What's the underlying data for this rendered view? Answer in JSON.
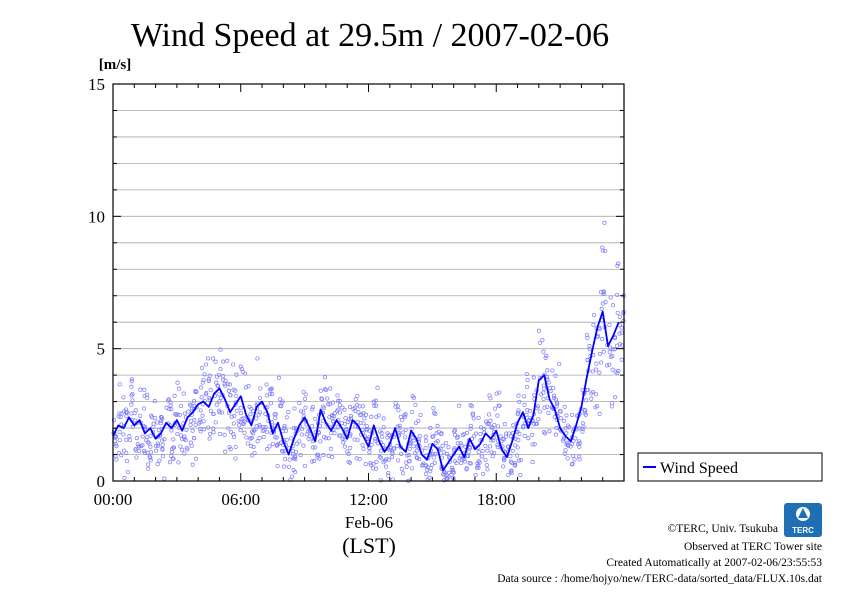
{
  "chart_data": {
    "type": "line",
    "title": "Wind Speed at 29.5m / 2007-02-06",
    "ylabel": "[m/s]",
    "xlabel": "(LST)",
    "date_label": "Feb-06",
    "x_ticks": [
      "00:00",
      "06:00",
      "12:00",
      "18:00"
    ],
    "y_ticks": [
      "0",
      "5",
      "10",
      "15"
    ],
    "ylim": [
      0,
      15
    ],
    "xlim_hours": [
      0,
      24
    ],
    "grid": true,
    "legend_position": "right",
    "series": [
      {
        "name": "Wind Speed",
        "color": "#0000ff",
        "x_hours": [
          0.0,
          0.25,
          0.5,
          0.75,
          1.0,
          1.25,
          1.5,
          1.75,
          2.0,
          2.25,
          2.5,
          2.75,
          3.0,
          3.25,
          3.5,
          3.75,
          4.0,
          4.25,
          4.5,
          4.75,
          5.0,
          5.25,
          5.5,
          5.75,
          6.0,
          6.25,
          6.5,
          6.75,
          7.0,
          7.25,
          7.5,
          7.75,
          8.0,
          8.25,
          8.5,
          8.75,
          9.0,
          9.25,
          9.5,
          9.75,
          10.0,
          10.25,
          10.5,
          10.75,
          11.0,
          11.25,
          11.5,
          11.75,
          12.0,
          12.25,
          12.5,
          12.75,
          13.0,
          13.25,
          13.5,
          13.75,
          14.0,
          14.25,
          14.5,
          14.75,
          15.0,
          15.25,
          15.5,
          15.75,
          16.0,
          16.25,
          16.5,
          16.75,
          17.0,
          17.25,
          17.5,
          17.75,
          18.0,
          18.25,
          18.5,
          18.75,
          19.0,
          19.25,
          19.5,
          19.75,
          20.0,
          20.25,
          20.5,
          20.75,
          21.0,
          21.25,
          21.5,
          21.75,
          22.0,
          22.25,
          22.5,
          22.75,
          23.0,
          23.25,
          23.5,
          23.75
        ],
        "values": [
          1.7,
          2.1,
          2.0,
          2.4,
          2.1,
          2.3,
          1.8,
          2.0,
          1.6,
          1.8,
          2.2,
          2.0,
          2.3,
          1.9,
          2.4,
          2.6,
          2.9,
          3.0,
          2.8,
          3.3,
          3.5,
          3.1,
          2.6,
          2.9,
          3.2,
          2.5,
          2.1,
          2.8,
          3.0,
          2.6,
          1.8,
          2.2,
          1.5,
          1.0,
          1.6,
          2.1,
          2.4,
          2.0,
          1.5,
          2.7,
          2.2,
          1.9,
          2.3,
          2.0,
          1.6,
          2.3,
          2.1,
          1.7,
          1.3,
          2.1,
          1.5,
          1.1,
          1.4,
          2.0,
          1.3,
          1.1,
          1.9,
          1.6,
          1.0,
          0.8,
          1.4,
          1.2,
          0.4,
          0.7,
          1.0,
          1.3,
          0.9,
          1.6,
          1.2,
          1.4,
          1.8,
          1.6,
          1.9,
          1.2,
          0.9,
          1.5,
          2.2,
          2.6,
          2.0,
          2.5,
          3.8,
          4.0,
          3.1,
          2.7,
          2.0,
          1.7,
          1.5,
          2.1,
          2.8,
          3.9,
          4.9,
          5.8,
          6.4,
          5.1,
          5.5,
          6.0
        ]
      }
    ]
  },
  "credits": [
    "©TERC, Univ. Tsukuba",
    "Observed at TERC Tower site",
    "Created Automatically at 2007-02-06/23:55:53",
    "Data source : /home/hojyo/new/TERC-data/sorted_data/FLUX.10s.dat"
  ],
  "logo_text": "TERC"
}
